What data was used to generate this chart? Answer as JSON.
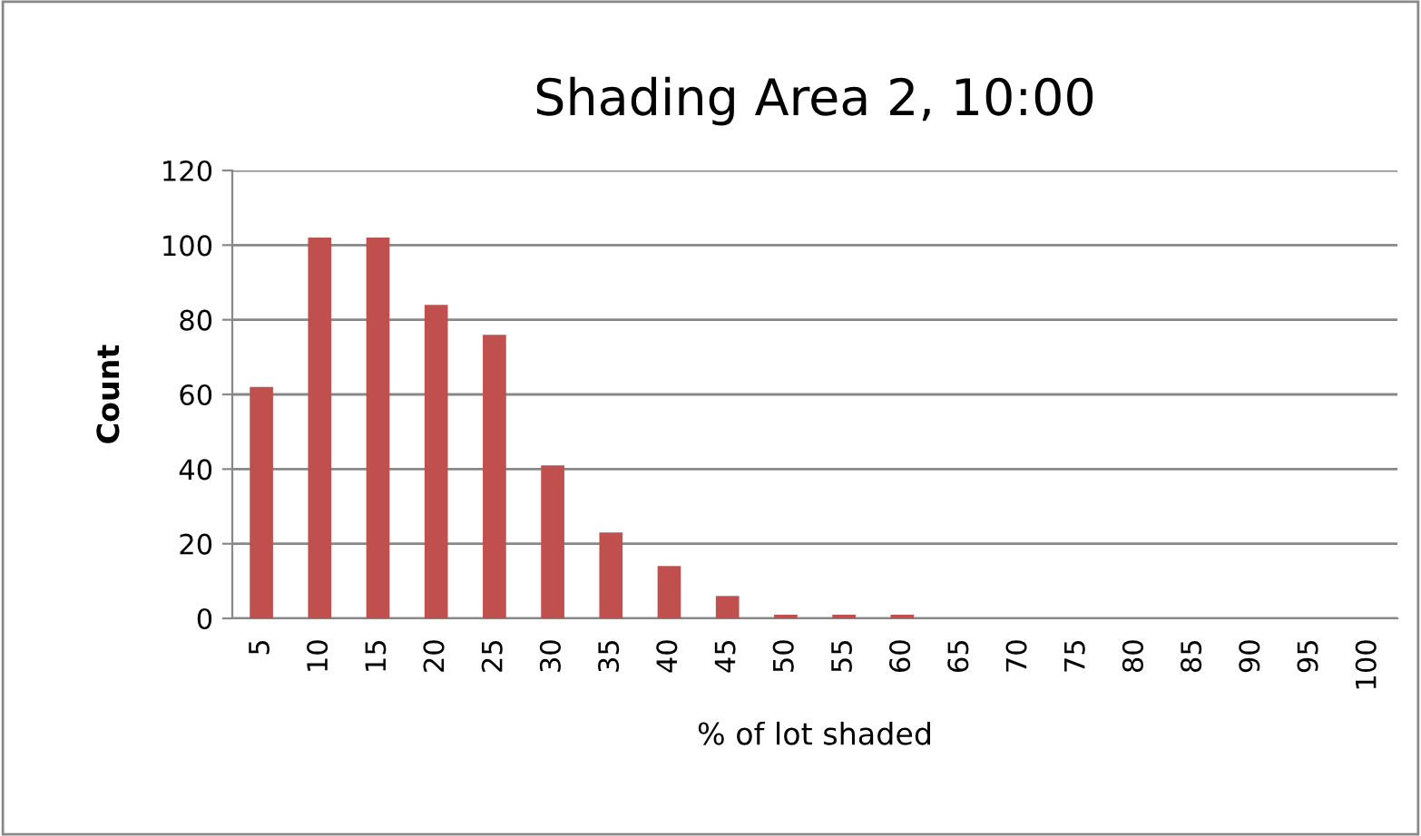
{
  "chart_data": {
    "type": "bar",
    "title": "Shading Area 2, 10:00",
    "xlabel": "% of lot shaded",
    "ylabel": "Count",
    "categories": [
      "5",
      "10",
      "15",
      "20",
      "25",
      "30",
      "35",
      "40",
      "45",
      "50",
      "55",
      "60",
      "65",
      "70",
      "75",
      "80",
      "85",
      "90",
      "95",
      "100"
    ],
    "values": [
      62,
      102,
      102,
      84,
      76,
      41,
      23,
      14,
      6,
      1,
      1,
      1,
      0,
      0,
      0,
      0,
      0,
      0,
      0,
      0
    ],
    "color": "#c0504d",
    "ylim": [
      0,
      120
    ],
    "yticks": [
      0,
      20,
      40,
      60,
      80,
      100,
      120
    ],
    "grid": "y",
    "legend": false
  }
}
